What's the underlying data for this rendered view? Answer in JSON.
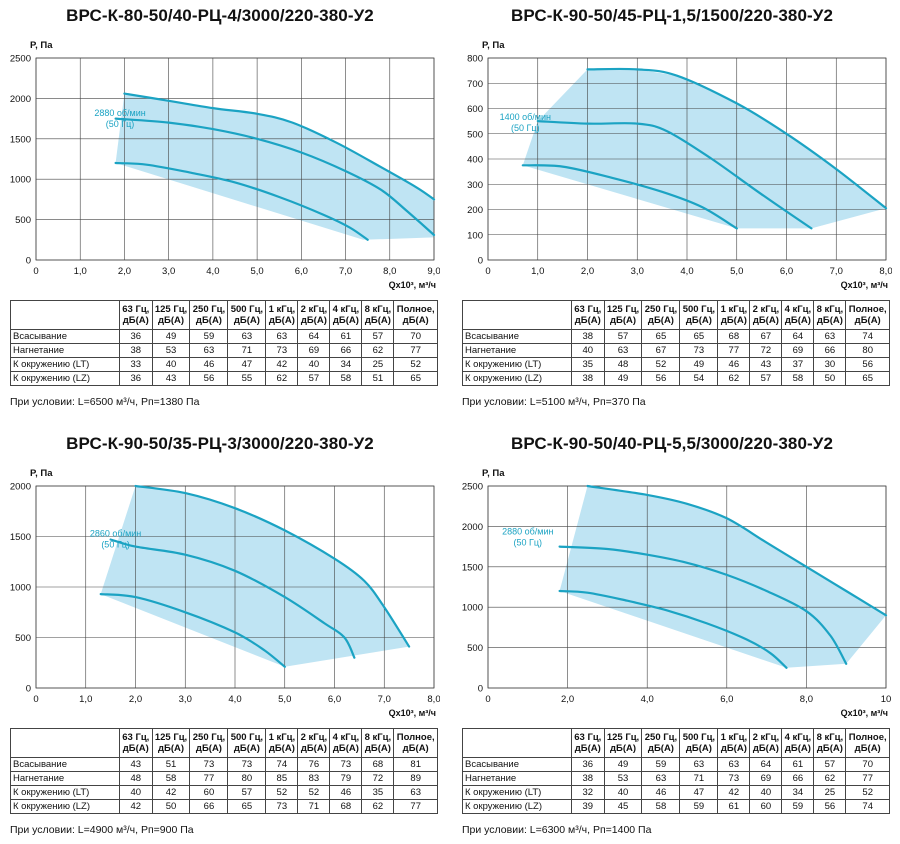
{
  "charts": [
    {
      "title": "ВРС-К-80-50/40-РЦ-4/3000/220-380-У2",
      "chart_data": {
        "type": "area",
        "ylabel": "P, Па",
        "xlabel": "Qx10³, м³/ч",
        "xlim": [
          0,
          9
        ],
        "ylim": [
          0,
          2500
        ],
        "xticks": [
          "0",
          "1,0",
          "2,0",
          "3,0",
          "4,0",
          "5,0",
          "6,0",
          "7,0",
          "8,0",
          "9,0"
        ],
        "yticks": [
          "0",
          "500",
          "1000",
          "1500",
          "2000",
          "2500"
        ],
        "xtick_values": [
          0,
          1,
          2,
          3,
          4,
          5,
          6,
          7,
          8,
          9
        ],
        "ytick_values": [
          0,
          500,
          1000,
          1500,
          2000,
          2500
        ],
        "grid": true,
        "annotation": {
          "line1": "2880 об/мин",
          "line2": "(50 Гц)",
          "at": [
            1.9,
            1780
          ]
        },
        "region": [
          [
            1.8,
            1200
          ],
          [
            2.0,
            2060
          ],
          [
            3.0,
            1970
          ],
          [
            4.0,
            1880
          ],
          [
            5.0,
            1810
          ],
          [
            5.8,
            1700
          ],
          [
            6.8,
            1450
          ],
          [
            7.8,
            1150
          ],
          [
            8.6,
            900
          ],
          [
            9.0,
            750
          ],
          [
            9.0,
            280
          ],
          [
            7.4,
            250
          ]
        ],
        "series": [
          {
            "x": [
              2.0,
              3.0,
              4.0,
              5.0,
              5.8,
              6.8,
              7.8,
              8.6,
              9.0
            ],
            "y": [
              2060,
              1970,
              1880,
              1810,
              1700,
              1450,
              1150,
              900,
              750
            ]
          },
          {
            "x": [
              1.8,
              3.0,
              4.0,
              5.0,
              6.0,
              7.0,
              7.8,
              8.4,
              9.0
            ],
            "y": [
              1750,
              1700,
              1620,
              1500,
              1330,
              1100,
              870,
              600,
              310
            ]
          },
          {
            "x": [
              1.8,
              2.5,
              3.5,
              4.5,
              5.5,
              6.5,
              7.1,
              7.5
            ],
            "y": [
              1200,
              1180,
              1080,
              960,
              780,
              560,
              400,
              250
            ]
          }
        ]
      },
      "table": {
        "headers": [
          "63 Гц, дБ(А)",
          "125 Гц, дБ(А)",
          "250 Гц, дБ(А)",
          "500 Гц, дБ(А)",
          "1 кГц, дБ(А)",
          "2 кГц, дБ(А)",
          "4 кГц, дБ(А)",
          "8 кГц, дБ(А)",
          "Полное, дБ(А)"
        ],
        "rows": [
          {
            "label": "Всасывание",
            "values": [
              "36",
              "49",
              "59",
              "63",
              "63",
              "64",
              "61",
              "57",
              "70"
            ]
          },
          {
            "label": "Нагнетание",
            "values": [
              "38",
              "53",
              "63",
              "71",
              "73",
              "69",
              "66",
              "62",
              "77"
            ]
          },
          {
            "label": "К окружению (LT)",
            "values": [
              "33",
              "40",
              "46",
              "47",
              "42",
              "40",
              "34",
              "25",
              "52"
            ]
          },
          {
            "label": "К окружению (LZ)",
            "values": [
              "36",
              "43",
              "56",
              "55",
              "62",
              "57",
              "58",
              "51",
              "65"
            ]
          }
        ]
      },
      "condition": "При условии: L=6500 м³/ч, Рп=1380 Па"
    },
    {
      "title": "ВРС-К-90-50/45-РЦ-1,5/1500/220-380-У2",
      "chart_data": {
        "type": "area",
        "ylabel": "P, Па",
        "xlabel": "Qx10³, м³/ч",
        "xlim": [
          0,
          8
        ],
        "ylim": [
          0,
          800
        ],
        "xticks": [
          "0",
          "1,0",
          "2,0",
          "3,0",
          "4,0",
          "5,0",
          "6,0",
          "7,0",
          "8,0"
        ],
        "yticks": [
          "0",
          "100",
          "200",
          "300",
          "400",
          "500",
          "600",
          "700",
          "800"
        ],
        "xtick_values": [
          0,
          1,
          2,
          3,
          4,
          5,
          6,
          7,
          8
        ],
        "ytick_values": [
          0,
          100,
          200,
          300,
          400,
          500,
          600,
          700,
          800
        ],
        "grid": true,
        "annotation": {
          "line1": "1400 об/мин",
          "line2": "(50 Гц)",
          "at": [
            0.75,
            555
          ]
        },
        "region": [
          [
            0.7,
            375
          ],
          [
            1.0,
            550
          ],
          [
            2.0,
            755
          ],
          [
            3.0,
            755
          ],
          [
            3.8,
            730
          ],
          [
            5.0,
            620
          ],
          [
            6.0,
            500
          ],
          [
            7.0,
            360
          ],
          [
            8.0,
            205
          ],
          [
            6.5,
            125
          ],
          [
            5.0,
            125
          ]
        ],
        "series": [
          {
            "x": [
              2.0,
              3.0,
              3.8,
              5.0,
              6.0,
              7.0,
              8.0
            ],
            "y": [
              755,
              755,
              730,
              620,
              500,
              360,
              205
            ]
          },
          {
            "x": [
              1.0,
              2.0,
              3.0,
              3.6,
              4.5,
              5.5,
              6.5
            ],
            "y": [
              550,
              540,
              540,
              510,
              400,
              260,
              125
            ]
          },
          {
            "x": [
              0.7,
              1.5,
              2.5,
              3.5,
              4.3,
              5.0
            ],
            "y": [
              375,
              370,
              325,
              270,
              210,
              125
            ]
          }
        ]
      },
      "table": {
        "headers": [
          "63 Гц, дБ(А)",
          "125 Гц, дБ(А)",
          "250 Гц, дБ(А)",
          "500 Гц, дБ(А)",
          "1 кГц, дБ(А)",
          "2 кГц, дБ(А)",
          "4 кГц, дБ(А)",
          "8 кГц, дБ(А)",
          "Полное, дБ(А)"
        ],
        "rows": [
          {
            "label": "Всасывание",
            "values": [
              "38",
              "57",
              "65",
              "65",
              "68",
              "67",
              "64",
              "63",
              "74"
            ]
          },
          {
            "label": "Нагнетание",
            "values": [
              "40",
              "63",
              "67",
              "73",
              "77",
              "72",
              "69",
              "66",
              "80"
            ]
          },
          {
            "label": "К окружению (LT)",
            "values": [
              "35",
              "48",
              "52",
              "49",
              "46",
              "43",
              "37",
              "30",
              "56"
            ]
          },
          {
            "label": "К окружению (LZ)",
            "values": [
              "38",
              "49",
              "56",
              "54",
              "62",
              "57",
              "58",
              "50",
              "65"
            ]
          }
        ]
      },
      "condition": "При условии: L=5100 м³/ч, Рп=370 Па"
    },
    {
      "title": "ВРС-К-90-50/35-РЦ-3/3000/220-380-У2",
      "chart_data": {
        "type": "area",
        "ylabel": "P, Па",
        "xlabel": "Qx10³, м³/ч",
        "xlim": [
          0,
          8
        ],
        "ylim": [
          0,
          2000
        ],
        "xticks": [
          "0",
          "1,0",
          "2,0",
          "3,0",
          "4,0",
          "5,0",
          "6,0",
          "7,0",
          "8,0"
        ],
        "yticks": [
          "0",
          "500",
          "1000",
          "1500",
          "2000"
        ],
        "xtick_values": [
          0,
          1,
          2,
          3,
          4,
          5,
          6,
          7,
          8
        ],
        "ytick_values": [
          0,
          500,
          1000,
          1500,
          2000
        ],
        "grid": true,
        "annotation": {
          "line1": "2860 об/мин",
          "line2": "(50 Гц)",
          "at": [
            1.6,
            1500
          ]
        },
        "region": [
          [
            1.3,
            930
          ],
          [
            2.0,
            2000
          ],
          [
            3.0,
            1930
          ],
          [
            4.0,
            1780
          ],
          [
            5.0,
            1560
          ],
          [
            6.0,
            1280
          ],
          [
            6.6,
            1060
          ],
          [
            7.0,
            800
          ],
          [
            7.5,
            410
          ],
          [
            5.0,
            210
          ]
        ],
        "series": [
          {
            "x": [
              2.0,
              3.0,
              4.0,
              5.0,
              6.0,
              6.6,
              7.0,
              7.5
            ],
            "y": [
              2000,
              1930,
              1780,
              1560,
              1280,
              1060,
              800,
              410
            ]
          },
          {
            "x": [
              1.5,
              2.0,
              3.0,
              4.0,
              5.0,
              5.8,
              6.2,
              6.4
            ],
            "y": [
              1470,
              1400,
              1320,
              1160,
              900,
              640,
              500,
              300
            ]
          },
          {
            "x": [
              1.3,
              2.0,
              3.0,
              4.0,
              4.6,
              5.0
            ],
            "y": [
              930,
              900,
              750,
              550,
              370,
              210
            ]
          }
        ]
      },
      "table": {
        "headers": [
          "63 Гц, дБ(А)",
          "125 Гц, дБ(А)",
          "250 Гц, дБ(А)",
          "500 Гц, дБ(А)",
          "1 кГц, дБ(А)",
          "2 кГц, дБ(А)",
          "4 кГц, дБ(А)",
          "8 кГц, дБ(А)",
          "Полное, дБ(А)"
        ],
        "rows": [
          {
            "label": "Всасывание",
            "values": [
              "43",
              "51",
              "73",
              "73",
              "74",
              "76",
              "73",
              "68",
              "81"
            ]
          },
          {
            "label": "Нагнетание",
            "values": [
              "48",
              "58",
              "77",
              "80",
              "85",
              "83",
              "79",
              "72",
              "89"
            ]
          },
          {
            "label": "К окружению (LT)",
            "values": [
              "40",
              "42",
              "60",
              "57",
              "52",
              "52",
              "46",
              "35",
              "63"
            ]
          },
          {
            "label": "К окружению (LZ)",
            "values": [
              "42",
              "50",
              "66",
              "65",
              "73",
              "71",
              "68",
              "62",
              "77"
            ]
          }
        ]
      },
      "condition": "При условии: L=4900 м³/ч, Рп=900 Па"
    },
    {
      "title": "ВРС-К-90-50/40-РЦ-5,5/3000/220-380-У2",
      "chart_data": {
        "type": "area",
        "ylabel": "P, Па",
        "xlabel": "Qx10³, м³/ч",
        "xlim": [
          0,
          10
        ],
        "ylim": [
          0,
          2500
        ],
        "xticks": [
          "0",
          "2,0",
          "4,0",
          "6,0",
          "8,0",
          "10"
        ],
        "yticks": [
          "0",
          "500",
          "1000",
          "1500",
          "2000",
          "2500"
        ],
        "xtick_values": [
          0,
          2,
          4,
          6,
          8,
          10
        ],
        "ytick_values": [
          0,
          500,
          1000,
          1500,
          2000,
          2500
        ],
        "grid": true,
        "annotation": {
          "line1": "2880 об/мин",
          "line2": "(50 Гц)",
          "at": [
            1.0,
            1900
          ]
        },
        "region": [
          [
            1.8,
            1200
          ],
          [
            2.5,
            2500
          ],
          [
            4.0,
            2390
          ],
          [
            5.0,
            2280
          ],
          [
            6.0,
            2100
          ],
          [
            7.0,
            1800
          ],
          [
            8.0,
            1500
          ],
          [
            9.0,
            1200
          ],
          [
            10.0,
            900
          ],
          [
            9.0,
            300
          ],
          [
            7.5,
            250
          ]
        ],
        "series": [
          {
            "x": [
              2.5,
              4.0,
              5.0,
              6.0,
              7.0,
              8.0,
              9.0,
              10.0
            ],
            "y": [
              2500,
              2390,
              2280,
              2100,
              1800,
              1500,
              1200,
              900
            ]
          },
          {
            "x": [
              1.8,
              3.0,
              4.0,
              5.0,
              6.0,
              7.0,
              8.0,
              8.6,
              9.0
            ],
            "y": [
              1750,
              1720,
              1650,
              1550,
              1400,
              1200,
              950,
              650,
              300
            ]
          },
          {
            "x": [
              1.8,
              2.5,
              3.5,
              4.5,
              5.5,
              6.5,
              7.1,
              7.5
            ],
            "y": [
              1200,
              1180,
              1080,
              960,
              800,
              600,
              430,
              250
            ]
          }
        ]
      },
      "table": {
        "headers": [
          "63 Гц, дБ(А)",
          "125 Гц, дБ(А)",
          "250 Гц, дБ(А)",
          "500 Гц, дБ(А)",
          "1 кГц, дБ(А)",
          "2 кГц, дБ(А)",
          "4 кГц, дБ(А)",
          "8 кГц, дБ(А)",
          "Полное, дБ(А)"
        ],
        "rows": [
          {
            "label": "Всасывание",
            "values": [
              "36",
              "49",
              "59",
              "63",
              "63",
              "64",
              "61",
              "57",
              "70"
            ]
          },
          {
            "label": "Нагнетание",
            "values": [
              "38",
              "53",
              "63",
              "71",
              "73",
              "69",
              "66",
              "62",
              "77"
            ]
          },
          {
            "label": "К окружению (LT)",
            "values": [
              "32",
              "40",
              "46",
              "47",
              "42",
              "40",
              "34",
              "25",
              "52"
            ]
          },
          {
            "label": "К окружению (LZ)",
            "values": [
              "39",
              "45",
              "58",
              "59",
              "61",
              "60",
              "59",
              "56",
              "74"
            ]
          }
        ]
      },
      "condition": "При условии: L=6300 м³/ч, Рп=1400 Па"
    }
  ],
  "colors": {
    "fill": "#bfe4f3",
    "curve": "#1ba3c3",
    "grid": "#444444",
    "annotation": "#1ba3c3"
  }
}
